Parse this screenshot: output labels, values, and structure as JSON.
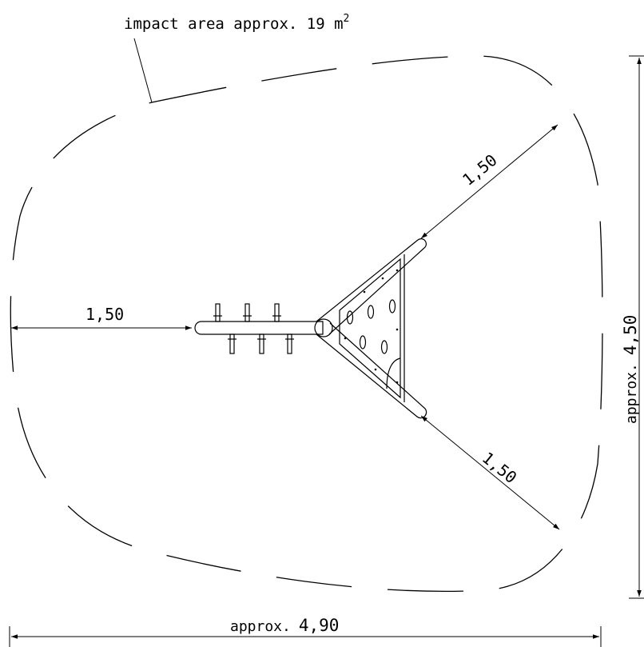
{
  "impact_area": {
    "label": "impact area approx. 19 m",
    "exponent": "2"
  },
  "dimensions": {
    "left_clearance": "1,50",
    "upper_right_clearance": "1,50",
    "lower_right_clearance": "1,50",
    "height_prefix": "approx.",
    "height_value": "4,50",
    "width_prefix": "approx.",
    "width_value": "4,90"
  }
}
